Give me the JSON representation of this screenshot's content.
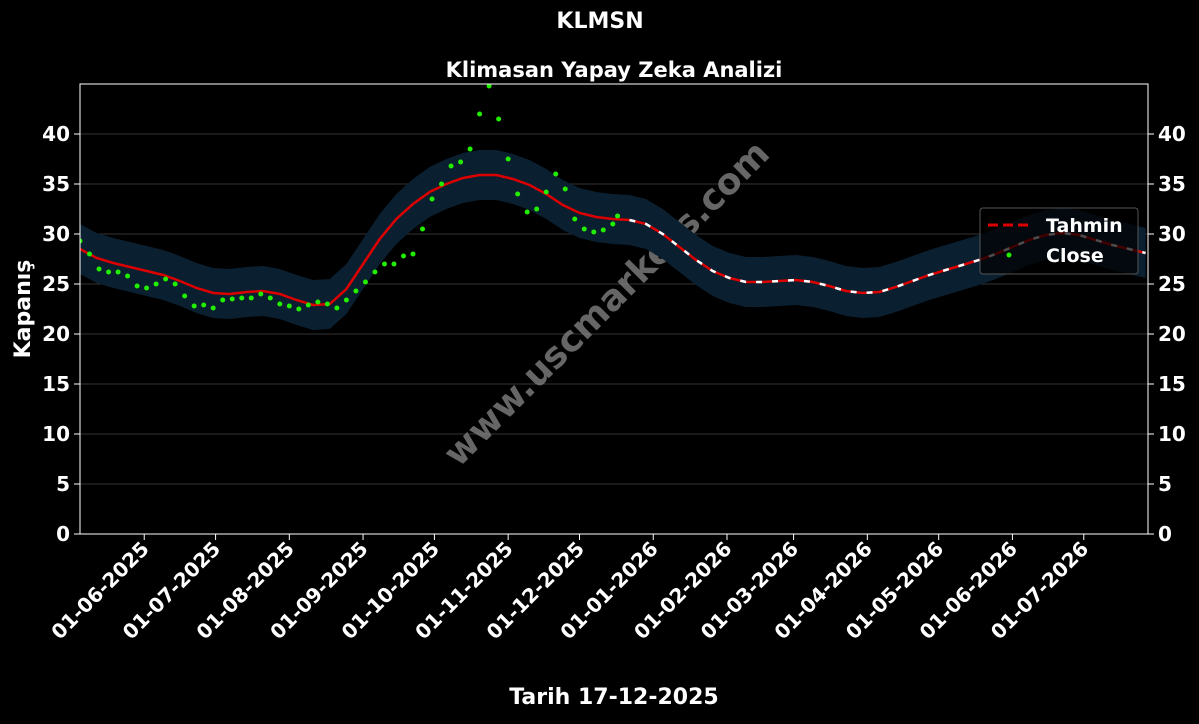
{
  "chart_data": {
    "type": "line",
    "title": "KLMSN",
    "subtitle": "Klimasan Yapay Zeka Analizi",
    "ylabel": "Kapanış",
    "xlabel": "Tarih 17-12-2025",
    "watermark": "www.uscmarkets.com",
    "forecast_start": "2025-12-17",
    "band_halfwidth": 2.5,
    "band_color": "#0a1f30",
    "grid": true,
    "legend": "right",
    "xlim": [
      "2025-05-05",
      "2026-07-28"
    ],
    "ylim": [
      0,
      45
    ],
    "yticks": [
      0,
      5,
      10,
      15,
      20,
      25,
      30,
      35,
      40
    ],
    "xticks": [
      {
        "value": "2025-06-01",
        "label": "01-06-2025"
      },
      {
        "value": "2025-07-01",
        "label": "01-07-2025"
      },
      {
        "value": "2025-08-01",
        "label": "01-08-2025"
      },
      {
        "value": "2025-09-01",
        "label": "01-09-2025"
      },
      {
        "value": "2025-10-01",
        "label": "01-10-2025"
      },
      {
        "value": "2025-11-01",
        "label": "01-11-2025"
      },
      {
        "value": "2025-12-01",
        "label": "01-12-2025"
      },
      {
        "value": "2026-01-01",
        "label": "01-01-2026"
      },
      {
        "value": "2026-02-01",
        "label": "01-02-2026"
      },
      {
        "value": "2026-03-01",
        "label": "01-03-2026"
      },
      {
        "value": "2026-04-01",
        "label": "01-04-2026"
      },
      {
        "value": "2026-05-01",
        "label": "01-05-2026"
      },
      {
        "value": "2026-06-01",
        "label": "01-06-2026"
      },
      {
        "value": "2026-07-01",
        "label": "01-07-2026"
      }
    ],
    "series": [
      {
        "name": "Tahmin",
        "color": "#dd0000",
        "x": [
          "2025-05-05",
          "2025-05-12",
          "2025-05-19",
          "2025-05-26",
          "2025-06-02",
          "2025-06-09",
          "2025-06-16",
          "2025-06-23",
          "2025-06-30",
          "2025-07-07",
          "2025-07-14",
          "2025-07-21",
          "2025-07-28",
          "2025-08-04",
          "2025-08-11",
          "2025-08-18",
          "2025-08-25",
          "2025-09-01",
          "2025-09-08",
          "2025-09-15",
          "2025-09-22",
          "2025-09-29",
          "2025-10-06",
          "2025-10-13",
          "2025-10-20",
          "2025-10-27",
          "2025-11-03",
          "2025-11-10",
          "2025-11-17",
          "2025-11-24",
          "2025-12-01",
          "2025-12-08",
          "2025-12-15",
          "2025-12-22",
          "2025-12-29",
          "2026-01-05",
          "2026-01-12",
          "2026-01-19",
          "2026-01-26",
          "2026-02-02",
          "2026-02-09",
          "2026-02-16",
          "2026-02-23",
          "2026-03-02",
          "2026-03-09",
          "2026-03-16",
          "2026-03-23",
          "2026-03-30",
          "2026-04-06",
          "2026-04-13",
          "2026-04-20",
          "2026-04-27",
          "2026-05-04",
          "2026-05-11",
          "2026-05-18",
          "2026-05-25",
          "2026-06-01",
          "2026-06-08",
          "2026-06-15",
          "2026-06-22",
          "2026-06-29",
          "2026-07-06",
          "2026-07-13",
          "2026-07-20",
          "2026-07-27"
        ],
        "values": [
          28.5,
          27.6,
          27.1,
          26.7,
          26.3,
          25.9,
          25.3,
          24.6,
          24.1,
          24.0,
          24.2,
          24.3,
          24.0,
          23.4,
          22.9,
          23.0,
          24.5,
          27.0,
          29.5,
          31.5,
          33.0,
          34.2,
          35.0,
          35.6,
          35.9,
          35.9,
          35.5,
          34.9,
          34.0,
          32.9,
          32.1,
          31.7,
          31.5,
          31.4,
          31.0,
          30.0,
          28.7,
          27.4,
          26.3,
          25.6,
          25.2,
          25.2,
          25.3,
          25.4,
          25.2,
          24.8,
          24.3,
          24.1,
          24.2,
          24.7,
          25.3,
          25.9,
          26.4,
          26.9,
          27.4,
          28.0,
          28.7,
          29.4,
          29.9,
          30.1,
          29.9,
          29.4,
          28.9,
          28.5,
          28.1
        ]
      },
      {
        "name": "Close",
        "color": "#22ee00",
        "x": [
          "2025-05-05",
          "2025-05-09",
          "2025-05-13",
          "2025-05-17",
          "2025-05-21",
          "2025-05-25",
          "2025-05-29",
          "2025-06-02",
          "2025-06-06",
          "2025-06-10",
          "2025-06-14",
          "2025-06-18",
          "2025-06-22",
          "2025-06-26",
          "2025-06-30",
          "2025-07-04",
          "2025-07-08",
          "2025-07-12",
          "2025-07-16",
          "2025-07-20",
          "2025-07-24",
          "2025-07-28",
          "2025-08-01",
          "2025-08-05",
          "2025-08-09",
          "2025-08-13",
          "2025-08-17",
          "2025-08-21",
          "2025-08-25",
          "2025-08-29",
          "2025-09-02",
          "2025-09-06",
          "2025-09-10",
          "2025-09-14",
          "2025-09-18",
          "2025-09-22",
          "2025-09-26",
          "2025-09-30",
          "2025-10-04",
          "2025-10-08",
          "2025-10-12",
          "2025-10-16",
          "2025-10-20",
          "2025-10-24",
          "2025-10-28",
          "2025-11-01",
          "2025-11-05",
          "2025-11-09",
          "2025-11-13",
          "2025-11-17",
          "2025-11-21",
          "2025-11-25",
          "2025-11-29",
          "2025-12-03",
          "2025-12-07",
          "2025-12-11",
          "2025-12-15",
          "2025-12-17"
        ],
        "values": [
          29.3,
          28.0,
          26.5,
          26.2,
          26.2,
          25.8,
          24.8,
          24.6,
          25.0,
          25.5,
          25.0,
          23.8,
          22.8,
          22.9,
          22.6,
          23.4,
          23.5,
          23.6,
          23.6,
          24.0,
          23.6,
          23.0,
          22.8,
          22.5,
          22.9,
          23.2,
          23.0,
          22.6,
          23.4,
          24.3,
          25.2,
          26.2,
          27.0,
          27.0,
          27.8,
          28.0,
          30.5,
          33.5,
          35.0,
          36.8,
          37.2,
          38.5,
          42.0,
          44.8,
          41.5,
          37.5,
          34.0,
          32.2,
          32.5,
          34.2,
          36.0,
          34.5,
          31.5,
          30.5,
          30.2,
          30.4,
          31.0,
          31.8
        ]
      }
    ]
  }
}
